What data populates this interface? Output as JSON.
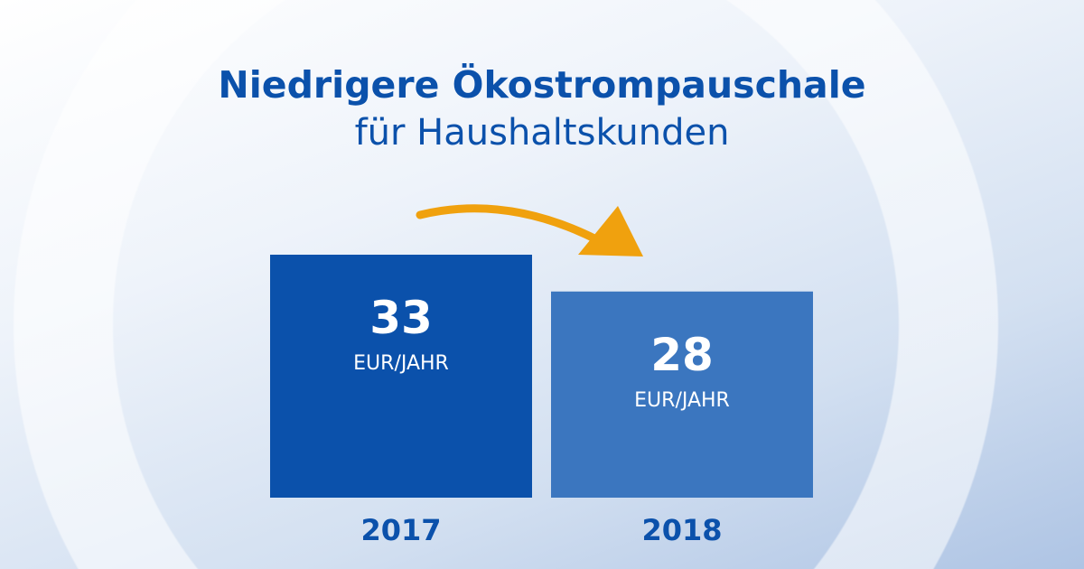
{
  "chart_data": {
    "type": "bar",
    "title": "Niedrigere Ökostrompauschale",
    "subtitle": "für Haushaltskunden",
    "categories": [
      "2017",
      "2018"
    ],
    "values": [
      33,
      28
    ],
    "unit_label": "EUR/JAHR",
    "colors": [
      "#0b51ab",
      "#3b76bf"
    ],
    "arrow_color": "#f0a10e",
    "axis_label_color": "#0b51ab",
    "grid": false,
    "xlabel": "",
    "ylabel": ""
  }
}
